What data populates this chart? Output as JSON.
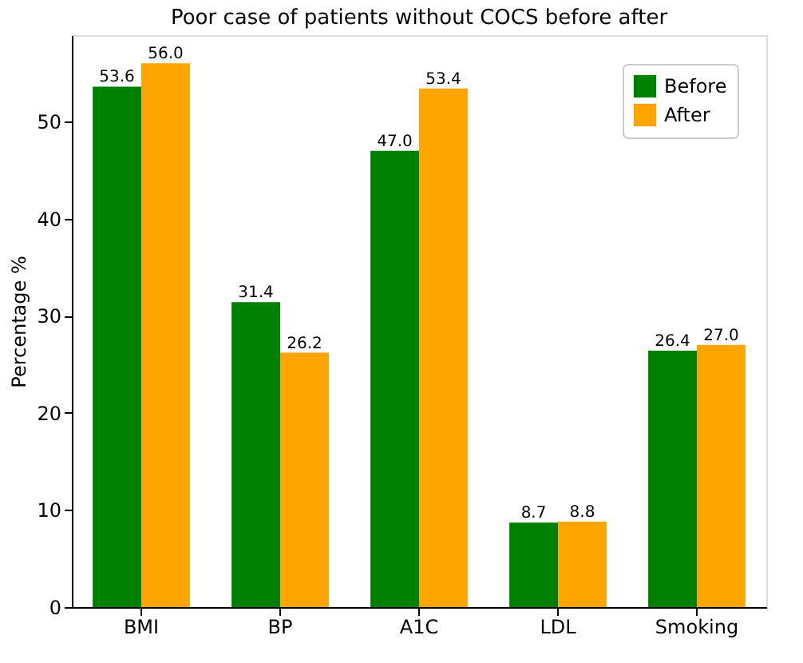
{
  "chart_data": {
    "type": "bar",
    "title": "Poor case of patients without COCS before after",
    "ylabel": "Percentage %",
    "categories": [
      "BMI",
      "BP",
      "A1C",
      "LDL",
      "Smoking"
    ],
    "series": [
      {
        "name": "Before",
        "color": "#008000",
        "values": [
          53.6,
          31.4,
          47.0,
          8.7,
          26.4
        ],
        "value_labels": [
          "53.6",
          "31.4",
          "47.0",
          "8.7",
          "26.4"
        ]
      },
      {
        "name": "After",
        "color": "#ffa500",
        "values": [
          56.0,
          26.2,
          53.4,
          8.8,
          27.0
        ],
        "value_labels": [
          "56.0",
          "26.2",
          "53.4",
          "8.8",
          "27.0"
        ]
      }
    ],
    "ylim": [
      0,
      58.9
    ],
    "yticks": [
      0,
      10,
      20,
      30,
      40,
      50
    ],
    "grid": false,
    "legend": "top right"
  }
}
